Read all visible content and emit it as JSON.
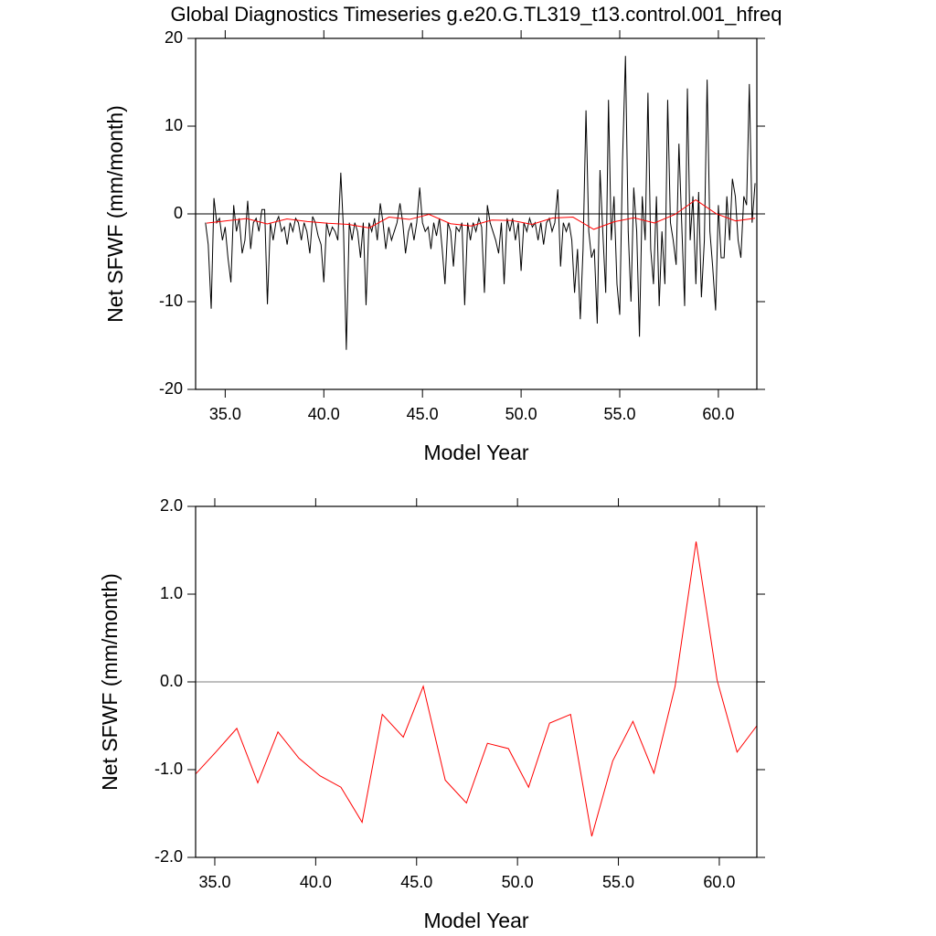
{
  "chart_data": [
    {
      "type": "line",
      "title": "Global Diagnostics Timeseries g.e20.G.TL319_t13.control.001_hfreq",
      "xlabel": "Model Year",
      "ylabel": "Net SFWF (mm/month)",
      "xlim": [
        33.5,
        61.95
      ],
      "ylim": [
        -20,
        20
      ],
      "xticks": [
        {
          "value": 35,
          "label": "35.0"
        },
        {
          "value": 40,
          "label": "40.0"
        },
        {
          "value": 45,
          "label": "45.0"
        },
        {
          "value": 50,
          "label": "50.0"
        },
        {
          "value": 55,
          "label": "55.0"
        },
        {
          "value": 60,
          "label": "60.0"
        }
      ],
      "yticks": [
        -20,
        -10,
        0,
        10,
        20
      ],
      "series": [
        {
          "color": "#000000",
          "x": [
            34,
            34.14,
            34.29,
            34.43,
            34.57,
            34.71,
            34.86,
            35,
            35.14,
            35.29,
            35.43,
            35.57,
            35.71,
            35.86,
            36,
            36.14,
            36.29,
            36.43,
            36.57,
            36.71,
            36.86,
            37,
            37.14,
            37.29,
            37.43,
            37.57,
            37.71,
            37.86,
            38,
            38.14,
            38.29,
            38.43,
            38.57,
            38.71,
            38.86,
            39,
            39.14,
            39.29,
            39.43,
            39.57,
            39.71,
            39.86,
            40,
            40.14,
            40.29,
            40.43,
            40.57,
            40.71,
            40.86,
            41,
            41.14,
            41.29,
            41.43,
            41.57,
            41.71,
            41.86,
            42,
            42.14,
            42.29,
            42.43,
            42.57,
            42.71,
            42.86,
            43,
            43.14,
            43.29,
            43.43,
            43.57,
            43.71,
            43.86,
            44,
            44.14,
            44.29,
            44.43,
            44.57,
            44.71,
            44.86,
            45,
            45.14,
            45.29,
            45.43,
            45.57,
            45.71,
            45.86,
            46,
            46.14,
            46.29,
            46.43,
            46.57,
            46.71,
            46.86,
            47,
            47.14,
            47.29,
            47.43,
            47.57,
            47.71,
            47.86,
            48,
            48.14,
            48.29,
            48.43,
            48.57,
            48.71,
            48.86,
            49,
            49.14,
            49.29,
            49.43,
            49.57,
            49.71,
            49.86,
            50,
            50.14,
            50.29,
            50.43,
            50.57,
            50.71,
            50.86,
            51,
            51.14,
            51.29,
            51.43,
            51.57,
            51.71,
            51.86,
            52,
            52.14,
            52.29,
            52.43,
            52.57,
            52.71,
            52.86,
            53,
            53.14,
            53.29,
            53.43,
            53.57,
            53.71,
            53.86,
            54,
            54.14,
            54.29,
            54.43,
            54.57,
            54.71,
            54.86,
            55,
            55.14,
            55.29,
            55.43,
            55.57,
            55.71,
            55.86,
            56,
            56.14,
            56.29,
            56.43,
            56.57,
            56.71,
            56.86,
            57,
            57.14,
            57.29,
            57.43,
            57.57,
            57.71,
            57.86,
            58,
            58.14,
            58.29,
            58.43,
            58.57,
            58.71,
            58.86,
            59,
            59.14,
            59.29,
            59.43,
            59.57,
            59.71,
            59.86,
            60,
            60.14,
            60.29,
            60.43,
            60.57,
            60.71,
            60.86,
            61,
            61.14,
            61.29,
            61.43,
            61.57,
            61.71,
            61.86
          ],
          "values": [
            -1,
            -3.5,
            -10.8,
            1.8,
            -1,
            -0.5,
            -3,
            -1.5,
            -5,
            -7.8,
            1,
            -2,
            -0.5,
            -4.5,
            -3,
            1.5,
            -4,
            -1,
            -0.5,
            -2,
            0.5,
            0.5,
            -10.3,
            -1,
            -3,
            -1,
            -0.3,
            -2,
            -1.5,
            -3.5,
            -1,
            -2,
            -0.5,
            -1,
            -3,
            -1,
            -2,
            -4.5,
            -0.3,
            -1,
            -2.5,
            -3.5,
            -7.8,
            -1,
            -2.5,
            -1.5,
            -2,
            -3,
            4.7,
            -2,
            -15.5,
            -1,
            -3,
            -1,
            -2,
            -5,
            -1,
            -10.4,
            -1,
            -2,
            -0.5,
            -3,
            1.2,
            -1,
            -4,
            -1.5,
            -3,
            -2,
            -1,
            1.2,
            -1,
            -4.5,
            -2,
            -1,
            -3,
            -1,
            3,
            -1,
            -2,
            -1.5,
            -4,
            -1,
            -2.5,
            -0.5,
            -4,
            -8,
            -1,
            -2,
            -6,
            -1.5,
            -2,
            -1,
            -10.4,
            -1,
            -3,
            -1,
            -2,
            -0.5,
            -1.5,
            -9,
            1,
            -1,
            -2,
            -3,
            -4.5,
            -1,
            -8,
            -0.5,
            -2,
            -0.5,
            -3,
            -1,
            -6.5,
            -1,
            -2,
            -0.5,
            -1.5,
            -1,
            -3,
            -1,
            -3.5,
            -1,
            -0.5,
            -2,
            -1,
            2.8,
            -6,
            -1,
            -2,
            -1,
            -3,
            -9,
            -4,
            -12,
            -4,
            11.8,
            -2,
            -5,
            -4,
            -12.5,
            5,
            -2,
            -9,
            13,
            -3,
            2,
            -8,
            -11.5,
            6,
            18,
            -2,
            -10,
            3,
            -2,
            -14,
            2,
            -3,
            13.8,
            -4,
            -8,
            2,
            -10.5,
            -2,
            -8,
            13,
            -1,
            -3,
            -5.8,
            8,
            -1,
            -10.5,
            14.3,
            -3,
            2,
            -8,
            2.5,
            -9.5,
            -3,
            15.3,
            -2,
            -6,
            -11,
            1,
            -5,
            -5,
            2,
            -3,
            4,
            2,
            -3,
            -5,
            2,
            1,
            14.8,
            -1,
            3.5
          ]
        },
        {
          "color": "#ff0000",
          "x": [
            34.05,
            35.05,
            36.09,
            37.13,
            38.13,
            39.17,
            40.21,
            41.25,
            42.3,
            43.3,
            44.34,
            45.33,
            46.42,
            47.47,
            48.51,
            49.55,
            50.55,
            51.59,
            52.63,
            53.68,
            54.72,
            55.72,
            56.76,
            57.81,
            58.85,
            59.89,
            60.88,
            61.86
          ],
          "values": [
            -1.05,
            -0.8,
            -0.53,
            -1.15,
            -0.57,
            -0.87,
            -1.07,
            -1.2,
            -1.6,
            -0.37,
            -0.63,
            -0.05,
            -1.12,
            -1.38,
            -0.7,
            -0.76,
            -1.2,
            -0.47,
            -0.37,
            -1.76,
            -0.9,
            -0.45,
            -1.04,
            -0.05,
            1.6,
            0.02,
            -0.8,
            -0.5
          ]
        }
      ]
    },
    {
      "type": "line",
      "xlabel": "Model Year",
      "ylabel": "Net SFWF (mm/month)",
      "xlim": [
        34.05,
        61.86
      ],
      "ylim": [
        -2,
        2
      ],
      "xticks": [
        {
          "value": 35,
          "label": "35.0"
        },
        {
          "value": 40,
          "label": "40.0"
        },
        {
          "value": 45,
          "label": "45.0"
        },
        {
          "value": 50,
          "label": "50.0"
        },
        {
          "value": 55,
          "label": "55.0"
        },
        {
          "value": 60,
          "label": "60.0"
        }
      ],
      "yticks": [
        {
          "value": -2,
          "label": "-2.0"
        },
        {
          "value": -1,
          "label": "-1.0"
        },
        {
          "value": 0,
          "label": "0.0"
        },
        {
          "value": 1,
          "label": "1.0"
        },
        {
          "value": 2,
          "label": "2.0"
        }
      ],
      "series": [
        {
          "color": "#ff0000",
          "x": [
            34.05,
            35.05,
            36.09,
            37.13,
            38.13,
            39.17,
            40.21,
            41.25,
            42.3,
            43.3,
            44.34,
            45.33,
            46.42,
            47.47,
            48.51,
            49.55,
            50.55,
            51.59,
            52.63,
            53.68,
            54.72,
            55.72,
            56.76,
            57.81,
            58.85,
            59.89,
            60.88,
            61.86
          ],
          "values": [
            -1.05,
            -0.8,
            -0.53,
            -1.15,
            -0.57,
            -0.87,
            -1.07,
            -1.2,
            -1.6,
            -0.37,
            -0.63,
            -0.05,
            -1.12,
            -1.38,
            -0.7,
            -0.76,
            -1.2,
            -0.47,
            -0.37,
            -1.76,
            -0.9,
            -0.45,
            -1.04,
            -0.05,
            1.6,
            0.02,
            -0.8,
            -0.5
          ]
        }
      ]
    }
  ]
}
